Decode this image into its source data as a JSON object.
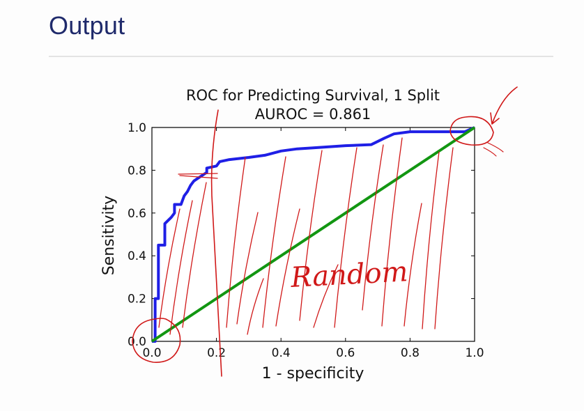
{
  "slide": {
    "title": "Output"
  },
  "annotation": {
    "handwritten_text": "Random"
  },
  "chart_data": {
    "type": "line",
    "title": "ROC for Predicting Survival, 1 Split",
    "subtitle": "AUROC = 0.861",
    "xlabel": "1 - specificity",
    "ylabel": "Sensitivity",
    "xlim": [
      0.0,
      1.0
    ],
    "ylim": [
      0.0,
      1.0
    ],
    "xticks": [
      "0.0",
      "0.2",
      "0.4",
      "0.6",
      "0.8",
      "1.0"
    ],
    "yticks": [
      "0.0",
      "0.2",
      "0.4",
      "0.6",
      "0.8",
      "1.0"
    ],
    "grid": false,
    "series": [
      {
        "color": "#1f1fe6",
        "points": [
          [
            0.0,
            0.0
          ],
          [
            0.01,
            0.0
          ],
          [
            0.01,
            0.2
          ],
          [
            0.02,
            0.2
          ],
          [
            0.02,
            0.45
          ],
          [
            0.04,
            0.45
          ],
          [
            0.04,
            0.55
          ],
          [
            0.06,
            0.58
          ],
          [
            0.07,
            0.6
          ],
          [
            0.07,
            0.64
          ],
          [
            0.09,
            0.64
          ],
          [
            0.1,
            0.68
          ],
          [
            0.11,
            0.7
          ],
          [
            0.12,
            0.73
          ],
          [
            0.13,
            0.75
          ],
          [
            0.15,
            0.77
          ],
          [
            0.17,
            0.79
          ],
          [
            0.17,
            0.81
          ],
          [
            0.2,
            0.82
          ],
          [
            0.21,
            0.84
          ],
          [
            0.24,
            0.85
          ],
          [
            0.3,
            0.86
          ],
          [
            0.35,
            0.87
          ],
          [
            0.4,
            0.89
          ],
          [
            0.45,
            0.9
          ],
          [
            0.5,
            0.905
          ],
          [
            0.6,
            0.915
          ],
          [
            0.68,
            0.92
          ],
          [
            0.72,
            0.95
          ],
          [
            0.75,
            0.97
          ],
          [
            0.8,
            0.98
          ],
          [
            0.9,
            0.98
          ],
          [
            0.97,
            0.98
          ],
          [
            1.0,
            1.0
          ]
        ]
      },
      {
        "color": "#129612",
        "points": [
          [
            0.0,
            0.0
          ],
          [
            1.0,
            1.0
          ]
        ]
      }
    ]
  }
}
